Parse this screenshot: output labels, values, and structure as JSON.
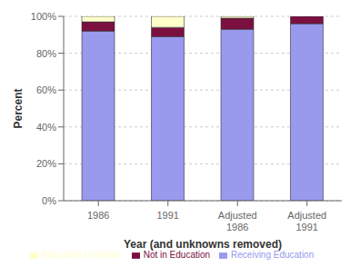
{
  "chart_data": {
    "type": "bar",
    "stacked": true,
    "categories": [
      "1986",
      "1991",
      "Adjusted\n1986",
      "Adjusted\n1991"
    ],
    "series": [
      {
        "name": "Receiving Education",
        "color": "#9999ee",
        "values": [
          92,
          89,
          93,
          96
        ]
      },
      {
        "name": "Not in Education",
        "color": "#7b1040",
        "values": [
          5,
          5,
          6,
          4
        ]
      },
      {
        "name": "Education Unknown",
        "color": "#ffffcc",
        "values": [
          3,
          6,
          1,
          0
        ]
      }
    ],
    "xlabel": "Year (and unknowns removed)",
    "ylabel": "Percent",
    "ylim": [
      0,
      100
    ],
    "yticks": [
      {
        "value": 0,
        "label": "0%"
      },
      {
        "value": 20,
        "label": "20%"
      },
      {
        "value": 40,
        "label": "40%"
      },
      {
        "value": 60,
        "label": "60%"
      },
      {
        "value": 80,
        "label": "80%"
      },
      {
        "value": 100,
        "label": "100%"
      }
    ],
    "grid": true,
    "legend": "bottom"
  }
}
